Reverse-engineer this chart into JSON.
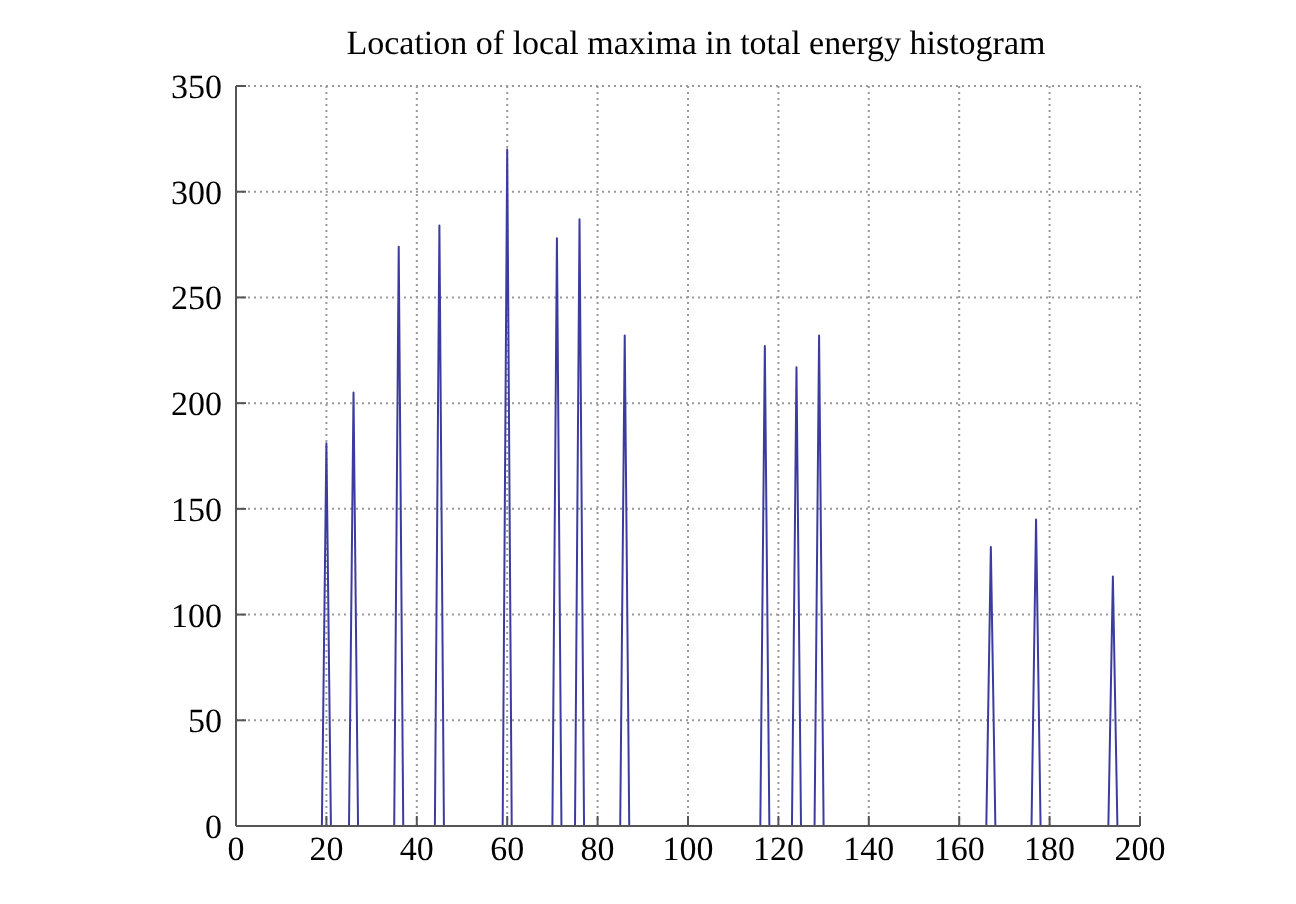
{
  "chart_data": {
    "type": "line",
    "title": "Location of local maxima in total energy histogram",
    "x": [
      0,
      19,
      20,
      21,
      25,
      26,
      27,
      35,
      36,
      37,
      44,
      45,
      46,
      59,
      60,
      61,
      70,
      71,
      72,
      75,
      76,
      77,
      85,
      86,
      87,
      116,
      117,
      118,
      123,
      124,
      125,
      128,
      129,
      130,
      166,
      167,
      168,
      176,
      177,
      178,
      193,
      194,
      195,
      200
    ],
    "series": [
      {
        "color": "#3c3ca0",
        "values": [
          0,
          0,
          181,
          0,
          0,
          205,
          0,
          0,
          274,
          0,
          0,
          284,
          0,
          0,
          320,
          0,
          0,
          278,
          0,
          0,
          287,
          0,
          0,
          232,
          0,
          0,
          227,
          0,
          0,
          217,
          0,
          0,
          232,
          0,
          0,
          132,
          0,
          0,
          145,
          0,
          0,
          118,
          0,
          0
        ]
      }
    ],
    "xlim": [
      0,
      200
    ],
    "xticks": [
      0,
      20,
      40,
      60,
      80,
      100,
      120,
      140,
      160,
      180,
      200
    ],
    "ylim": [
      0,
      350
    ],
    "yticks": [
      0,
      50,
      100,
      150,
      200,
      250,
      300,
      350
    ],
    "grid": true,
    "line_style": "solid",
    "marker": "none"
  }
}
